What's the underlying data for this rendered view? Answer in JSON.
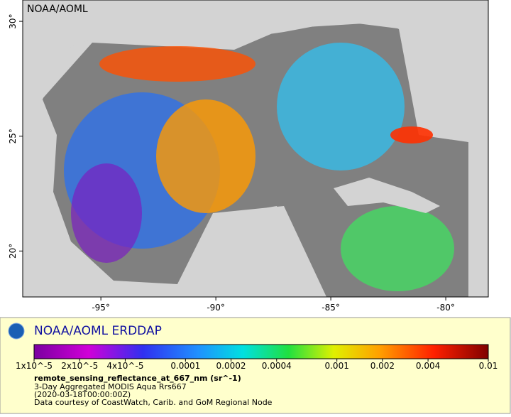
{
  "map": {
    "corner_label": "NOAA/AOML",
    "lonlim": [
      -98.4,
      -78.15
    ],
    "latlim": [
      18.0,
      30.93
    ],
    "lat_ticks": [
      {
        "value": 20,
        "label": "20°"
      },
      {
        "value": 25,
        "label": "25°"
      },
      {
        "value": 30,
        "label": "30°"
      }
    ],
    "lon_ticks": [
      {
        "value": -95,
        "label": "-95°"
      },
      {
        "value": -90,
        "label": "-90°"
      },
      {
        "value": -85,
        "label": "-85°"
      },
      {
        "value": -80,
        "label": "-80°"
      }
    ]
  },
  "legend": {
    "brand": "NOAA/AOML ERDDAP",
    "scale": "log",
    "range": [
      1e-05,
      0.01
    ],
    "ticks": [
      {
        "value": 1e-05,
        "label": "1x10^-5"
      },
      {
        "value": 2e-05,
        "label": "2x10^-5"
      },
      {
        "value": 4e-05,
        "label": "4x10^-5"
      },
      {
        "value": 0.0001,
        "label": "0.0001"
      },
      {
        "value": 0.0002,
        "label": "0.0002"
      },
      {
        "value": 0.0004,
        "label": "0.0004"
      },
      {
        "value": 0.001,
        "label": "0.001"
      },
      {
        "value": 0.002,
        "label": "0.002"
      },
      {
        "value": 0.004,
        "label": "0.004"
      },
      {
        "value": 0.01,
        "label": "0.01"
      }
    ],
    "variable": "remote_sensing_reflectance_at_667_nm (sr^-1)",
    "dataset": "3-Day Aggregated MODIS Aqua Rrs667",
    "time": "(2020-03-18T00:00:00Z)",
    "credit": "Data courtesy of CoastWatch, Carib. and GoM Regional Node"
  }
}
